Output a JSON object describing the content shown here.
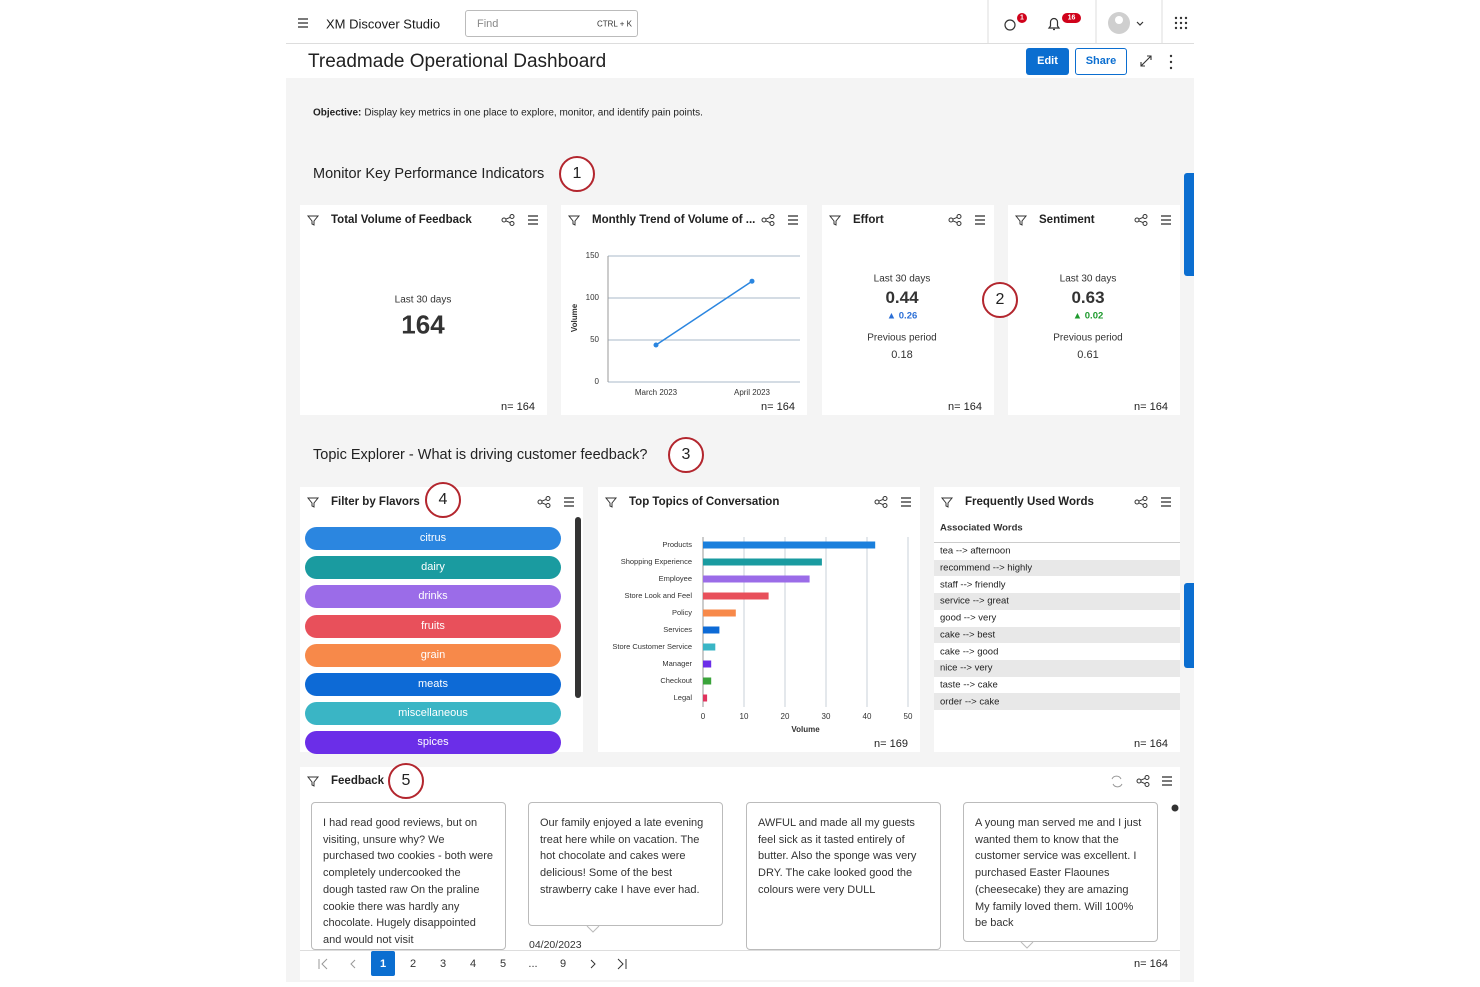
{
  "header": {
    "app_name": "XM Discover Studio",
    "search_placeholder": "Find",
    "search_shortcut": "CTRL + K",
    "alert_count": "1",
    "notification_count": "16"
  },
  "dashboard": {
    "title": "Treadmade Operational Dashboard",
    "edit_button": "Edit",
    "share_button": "Share",
    "objective_label": "Objective:",
    "objective_text": "Display key metrics in one place to explore, monitor, and identify pain points."
  },
  "sections": [
    "Monitor Key Performance Indicators",
    "Topic Explorer - What is driving customer feedback?"
  ],
  "annotations": [
    "1",
    "2",
    "3",
    "4",
    "5"
  ],
  "kpis": [
    {
      "title": "Total Volume of Feedback",
      "period": "Last 30 days",
      "value": "164",
      "n": "n= 164"
    },
    {
      "title": "Effort",
      "period": "Last 30 days",
      "value": "0.44",
      "change": "▲ 0.26",
      "change_color": "#2b6fd6",
      "previous_label": "Previous period",
      "previous": "0.18",
      "n": "n= 164"
    },
    {
      "title": "Sentiment",
      "period": "Last 30 days",
      "value": "0.63",
      "change": "▲ 0.02",
      "change_color": "#1f9a2e",
      "previous_label": "Previous period",
      "previous": "0.61",
      "n": "n= 164"
    }
  ],
  "chart_data": [
    {
      "type": "line",
      "title": "Monthly Trend of Volume of ...",
      "categories": [
        "March 2023",
        "April 2023"
      ],
      "values": [
        44,
        120
      ],
      "color": "#2b86e0",
      "ylim": [
        0,
        150
      ],
      "yticks": [
        0,
        50,
        100,
        150
      ],
      "y_label": "Volume",
      "grid": true,
      "n": "n= 164"
    },
    {
      "type": "bar",
      "orientation": "horizontal",
      "title": "Top Topics of Conversation",
      "categories": [
        "Products",
        "Shopping Experience",
        "Employee",
        "Store Look and Feel",
        "Policy",
        "Services",
        "Store Customer Service",
        "Manager",
        "Checkout",
        "Legal"
      ],
      "values": [
        42,
        29,
        26,
        16,
        8,
        4,
        3,
        2,
        2,
        1
      ],
      "colors": [
        "#1a7fdc",
        "#1a9ba0",
        "#9b6ce8",
        "#e8505b",
        "#f7894a",
        "#0d6ad6",
        "#3ab5c5",
        "#6b2ee8",
        "#3aa33a",
        "#e0335d"
      ],
      "xlim": [
        0,
        50
      ],
      "xticks": [
        0,
        10,
        20,
        30,
        40,
        50
      ],
      "x_label": "Volume",
      "grid": true,
      "n": "n= 169"
    }
  ],
  "flavors": {
    "title": "Filter by Flavors",
    "items": [
      {
        "label": "citrus",
        "color": "#2b86e0"
      },
      {
        "label": "dairy",
        "color": "#1a9ba0"
      },
      {
        "label": "drinks",
        "color": "#9b6ce8"
      },
      {
        "label": "fruits",
        "color": "#e8505b"
      },
      {
        "label": "grain",
        "color": "#f7894a"
      },
      {
        "label": "meats",
        "color": "#0d6ad6"
      },
      {
        "label": "miscellaneous",
        "color": "#3ab5c5"
      },
      {
        "label": "spices",
        "color": "#6b2ee8"
      }
    ]
  },
  "words": {
    "title": "Frequently Used Words",
    "header": "Associated Words",
    "rows": [
      "tea --> afternoon",
      "recommend --> highly",
      "staff --> friendly",
      "service --> great",
      "good --> very",
      "cake --> best",
      "cake --> good",
      "nice --> very",
      "taste --> cake",
      "order --> cake"
    ],
    "n": "n= 164"
  },
  "feedback": {
    "title": "Feedback",
    "cards": [
      "I had read good reviews, but on visiting, unsure why? We purchased two cookies - both were completely undercooked the dough tasted raw On the praline cookie there was hardly any chocolate. Hugely disappointed and would not visit",
      "Our family enjoyed a late evening treat here while on vacation. The hot chocolate and cakes were delicious! Some of the best strawberry cake I have ever had.",
      "AWFUL and made all my guests feel sick as it tasted entirely of butter. Also the sponge was very DRY. The cake looked good the colours were very DULL",
      "A young man served me and I just wanted them to know that the customer service was excellent. I purchased Easter Flaounes (cheesecake) they are amazing My family loved them. Will 100% be back"
    ],
    "date": "04/20/2023",
    "pages": [
      "1",
      "2",
      "3",
      "4",
      "5",
      "...",
      "9"
    ],
    "n": "n= 164"
  }
}
